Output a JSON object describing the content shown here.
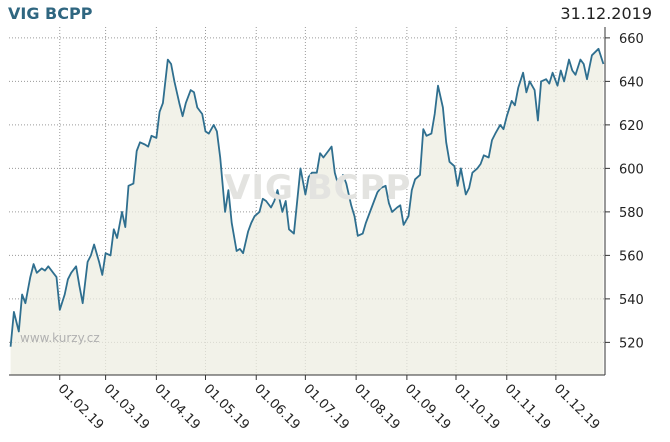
{
  "header": {
    "title": "VIG BCPP",
    "date": "31.12.2019"
  },
  "watermark": "VIG BCPP",
  "site_label": "www.kurzy.cz",
  "colors": {
    "line": "#2f6f8f",
    "area": "#eeeee2",
    "grid": "#9a9a9a",
    "background": "#ffffff"
  },
  "chart_data": {
    "type": "area",
    "title": "VIG BCPP",
    "xlabel": "",
    "ylabel": "",
    "ylim": [
      505,
      665
    ],
    "xlim": [
      "2019-01-01",
      "2019-12-31"
    ],
    "grid": true,
    "y_ticks": [
      520,
      540,
      560,
      580,
      600,
      620,
      640,
      660
    ],
    "x_ticks": [
      "01.02.19",
      "01.03.19",
      "01.04.19",
      "01.05.19",
      "01.06.19",
      "01.07.19",
      "01.08.19",
      "01.09.19",
      "01.10.19",
      "01.11.19",
      "01.12.19"
    ],
    "series": [
      {
        "x": [
          "2019-01-02",
          "2019-01-04",
          "2019-01-07",
          "2019-01-09",
          "2019-01-11",
          "2019-01-14",
          "2019-01-16",
          "2019-01-18",
          "2019-01-21",
          "2019-01-23",
          "2019-01-25",
          "2019-01-28",
          "2019-01-30",
          "2019-02-01",
          "2019-02-04",
          "2019-02-06",
          "2019-02-08",
          "2019-02-11",
          "2019-02-13",
          "2019-02-15",
          "2019-02-18",
          "2019-02-20",
          "2019-02-22",
          "2019-02-25",
          "2019-02-27",
          "2019-03-01",
          "2019-03-04",
          "2019-03-06",
          "2019-03-08",
          "2019-03-11",
          "2019-03-13",
          "2019-03-15",
          "2019-03-18",
          "2019-03-20",
          "2019-03-22",
          "2019-03-25",
          "2019-03-27",
          "2019-03-29",
          "2019-04-01",
          "2019-04-03",
          "2019-04-05",
          "2019-04-08",
          "2019-04-10",
          "2019-04-12",
          "2019-04-15",
          "2019-04-17",
          "2019-04-19",
          "2019-04-22",
          "2019-04-24",
          "2019-04-26",
          "2019-04-29",
          "2019-05-01",
          "2019-05-03",
          "2019-05-06",
          "2019-05-08",
          "2019-05-10",
          "2019-05-13",
          "2019-05-15",
          "2019-05-17",
          "2019-05-20",
          "2019-05-22",
          "2019-05-24",
          "2019-05-27",
          "2019-05-29",
          "2019-05-31",
          "2019-06-03",
          "2019-06-05",
          "2019-06-07",
          "2019-06-10",
          "2019-06-12",
          "2019-06-14",
          "2019-06-17",
          "2019-06-19",
          "2019-06-21",
          "2019-06-24",
          "2019-06-26",
          "2019-06-28",
          "2019-07-01",
          "2019-07-03",
          "2019-07-05",
          "2019-07-08",
          "2019-07-10",
          "2019-07-12",
          "2019-07-15",
          "2019-07-17",
          "2019-07-19",
          "2019-07-22",
          "2019-07-24",
          "2019-07-26",
          "2019-07-29",
          "2019-07-31",
          "2019-08-02",
          "2019-08-05",
          "2019-08-07",
          "2019-08-09",
          "2019-08-12",
          "2019-08-14",
          "2019-08-16",
          "2019-08-19",
          "2019-08-21",
          "2019-08-23",
          "2019-08-26",
          "2019-08-28",
          "2019-08-30",
          "2019-09-02",
          "2019-09-04",
          "2019-09-06",
          "2019-09-09",
          "2019-09-11",
          "2019-09-13",
          "2019-09-16",
          "2019-09-18",
          "2019-09-20",
          "2019-09-23",
          "2019-09-25",
          "2019-09-27",
          "2019-09-30",
          "2019-10-02",
          "2019-10-04",
          "2019-10-07",
          "2019-10-09",
          "2019-10-11",
          "2019-10-14",
          "2019-10-16",
          "2019-10-18",
          "2019-10-21",
          "2019-10-23",
          "2019-10-25",
          "2019-10-28",
          "2019-10-30",
          "2019-11-01",
          "2019-11-04",
          "2019-11-06",
          "2019-11-08",
          "2019-11-11",
          "2019-11-13",
          "2019-11-15",
          "2019-11-18",
          "2019-11-20",
          "2019-11-22",
          "2019-11-25",
          "2019-11-27",
          "2019-11-29",
          "2019-12-02",
          "2019-12-04",
          "2019-12-06",
          "2019-12-09",
          "2019-12-11",
          "2019-12-13",
          "2019-12-16",
          "2019-12-18",
          "2019-12-20",
          "2019-12-23",
          "2019-12-27",
          "2019-12-30"
        ],
        "y": [
          518,
          534,
          525,
          542,
          538,
          550,
          556,
          552,
          554,
          553,
          555,
          552,
          550,
          535,
          542,
          549,
          552,
          555,
          546,
          538,
          557,
          560,
          565,
          557,
          551,
          561,
          560,
          572,
          568,
          580,
          573,
          592,
          593,
          608,
          612,
          611,
          610,
          615,
          614,
          626,
          630,
          650,
          648,
          640,
          630,
          624,
          630,
          636,
          635,
          628,
          625,
          617,
          616,
          620,
          617,
          605,
          580,
          590,
          575,
          562,
          563,
          561,
          571,
          575,
          578,
          580,
          586,
          585,
          582,
          585,
          590,
          580,
          585,
          572,
          570,
          585,
          600,
          588,
          596,
          598,
          598,
          607,
          605,
          608,
          610,
          598,
          590,
          597,
          593,
          583,
          578,
          569,
          570,
          575,
          579,
          585,
          589,
          591,
          592,
          584,
          580,
          582,
          583,
          574,
          578,
          590,
          595,
          597,
          618,
          615,
          616,
          625,
          638,
          628,
          612,
          603,
          601,
          592,
          600,
          588,
          591,
          598,
          600,
          602,
          606,
          605,
          613,
          616,
          620,
          618,
          624,
          631,
          629,
          637,
          644,
          635,
          640,
          636,
          622,
          640,
          641,
          639,
          644,
          638,
          645,
          640,
          650,
          645,
          643,
          650,
          648,
          641,
          652,
          655,
          648
        ]
      }
    ]
  }
}
